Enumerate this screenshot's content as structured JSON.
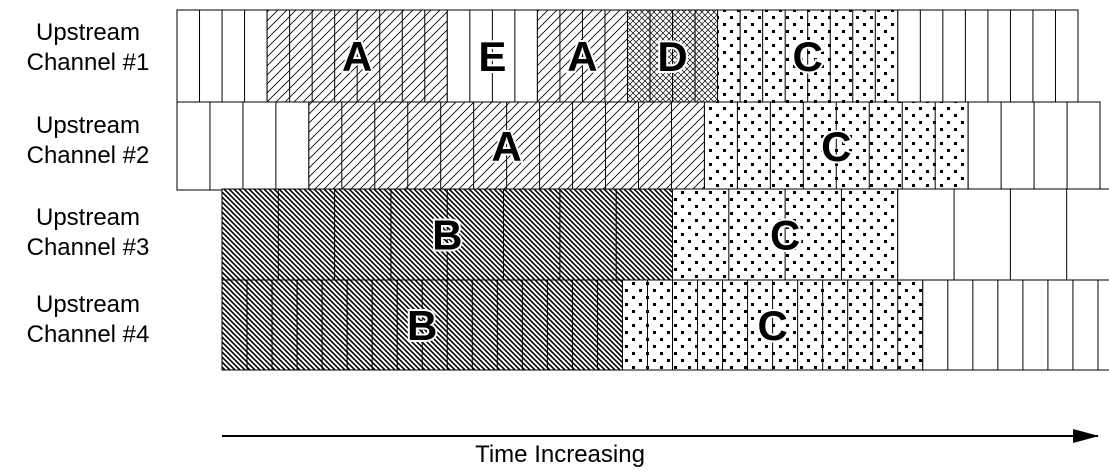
{
  "channels": [
    {
      "label_line1": "Upstream",
      "label_line2": "Channel #1",
      "segments": [
        {
          "grant": "",
          "pattern": "blank",
          "slots": 4
        },
        {
          "grant": "A",
          "pattern": "hatch-a",
          "slots": 8
        },
        {
          "grant": "E",
          "pattern": "blank",
          "slots": 4
        },
        {
          "grant": "A",
          "pattern": "hatch-a",
          "slots": 4
        },
        {
          "grant": "D",
          "pattern": "crosshatch",
          "slots": 4
        },
        {
          "grant": "C",
          "pattern": "dots",
          "slots": 8
        },
        {
          "grant": "",
          "pattern": "blank",
          "slots": 8
        }
      ]
    },
    {
      "label_line1": "Upstream",
      "label_line2": "Channel #2",
      "segments": [
        {
          "grant": "",
          "pattern": "blank",
          "slots": 4
        },
        {
          "grant": "A",
          "pattern": "hatch-a",
          "slots": 12
        },
        {
          "grant": "C",
          "pattern": "dots",
          "slots": 8
        },
        {
          "grant": "",
          "pattern": "blank",
          "slots": 4
        }
      ]
    },
    {
      "label_line1": "Upstream",
      "label_line2": "Channel #3",
      "segments": [
        {
          "grant": "B",
          "pattern": "hatch-b",
          "slots": 8
        },
        {
          "grant": "C",
          "pattern": "dots",
          "slots": 4
        },
        {
          "grant": "",
          "pattern": "blank",
          "slots": 4
        }
      ]
    },
    {
      "label_line1": "Upstream",
      "label_line2": "Channel #4",
      "segments": [
        {
          "grant": "B",
          "pattern": "hatch-b",
          "slots": 16
        },
        {
          "grant": "C",
          "pattern": "dots",
          "slots": 12
        },
        {
          "grant": "",
          "pattern": "blank",
          "slots": 8
        }
      ]
    }
  ],
  "time_axis": {
    "label": "Time Increasing"
  }
}
